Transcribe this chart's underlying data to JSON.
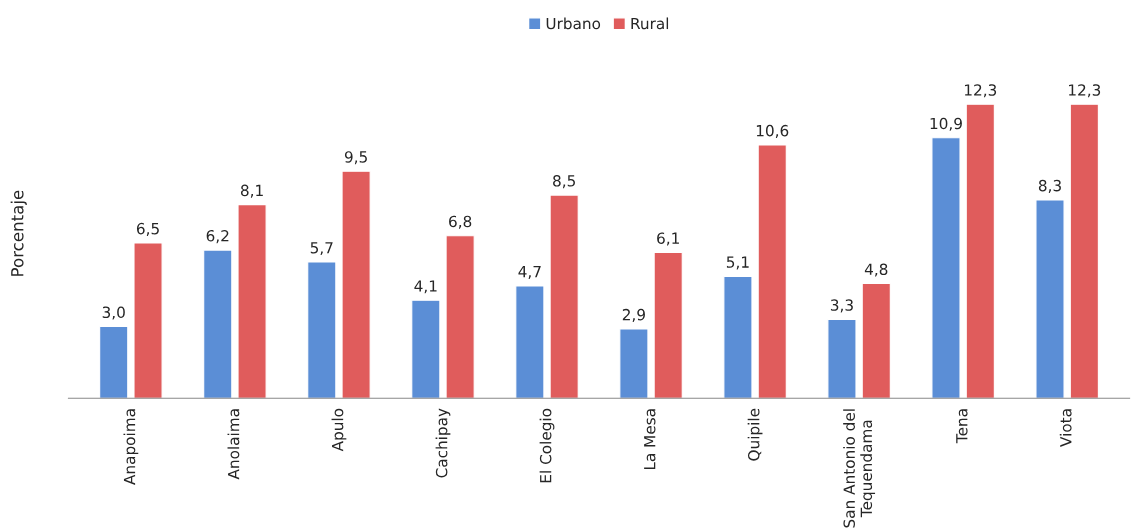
{
  "chart_data": {
    "type": "bar",
    "ylabel": "Porcentaje",
    "categories": [
      "Anapoima",
      "Anolaima",
      "Apulo",
      "Cachipay",
      "El Colegio",
      "La Mesa",
      "Quipile",
      "San Antonio del\nTequendama",
      "Tena",
      "Viota"
    ],
    "series": [
      {
        "name": "Urbano",
        "color": "#5b8ed6",
        "values": [
          3.0,
          6.2,
          5.7,
          4.1,
          4.7,
          2.9,
          5.1,
          3.3,
          10.9,
          8.3
        ],
        "value_labels": [
          "3,0",
          "6,2",
          "5,7",
          "4,1",
          "4,7",
          "2,9",
          "5,1",
          "3,3",
          "10,9",
          "8,3"
        ]
      },
      {
        "name": "Rural",
        "color": "#e05c5c",
        "values": [
          6.5,
          8.1,
          9.5,
          6.8,
          8.5,
          6.1,
          10.6,
          4.8,
          12.3,
          12.3
        ],
        "value_labels": [
          "6,5",
          "8,1",
          "9,5",
          "6,8",
          "8,5",
          "6,1",
          "10,6",
          "4,8",
          "12,3",
          "12,3"
        ]
      }
    ],
    "legend": "top",
    "grid": false,
    "tick_labels": "x"
  }
}
